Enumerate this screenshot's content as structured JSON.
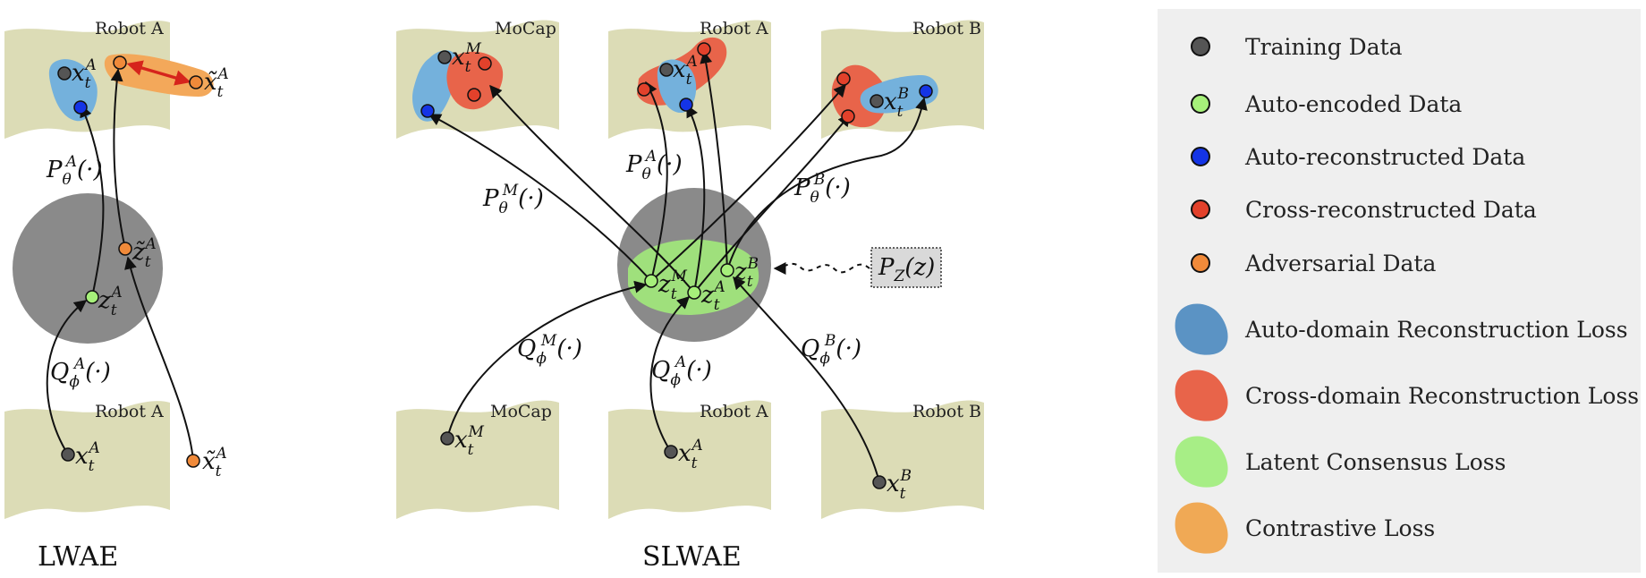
{
  "panels": {
    "lwae": {
      "caption": "LWAE",
      "top_label": "Robot A",
      "bottom_label": "Robot A"
    },
    "slwae": {
      "caption": "SLWAE",
      "top_labels": [
        "MoCap",
        "Robot A",
        "Robot B"
      ],
      "bottom_labels": [
        "MoCap",
        "Robot A",
        "Robot B"
      ]
    }
  },
  "math": {
    "x": "x",
    "t": "t",
    "A": "A",
    "B": "B",
    "M": "M",
    "z": "z",
    "P": "P",
    "Q": "Q",
    "theta": "θ",
    "phi": "ϕ",
    "dot_arg": "(·)",
    "tilde_x": "x̃",
    "tilde_z": "z̃",
    "pz": "P",
    "pz_sub": "Z",
    "pz_arg": "(z)"
  },
  "legend": {
    "items": [
      {
        "type": "dot",
        "label": "Training Data",
        "color": "#555555"
      },
      {
        "type": "dot",
        "label": "Auto-encoded Data",
        "color": "#a6f07a"
      },
      {
        "type": "dot",
        "label": "Auto-reconstructed Data",
        "color": "#1434e6"
      },
      {
        "type": "dot",
        "label": "Cross-reconstructed Data",
        "color": "#e2412b"
      },
      {
        "type": "dot",
        "label": "Adversarial Data",
        "color": "#f08a3a"
      },
      {
        "type": "blob",
        "label": "Auto-domain Reconstruction Loss",
        "color": "#5b93c4"
      },
      {
        "type": "blob",
        "label": "Cross-domain Reconstruction Loss",
        "color": "#e8644a"
      },
      {
        "type": "blob",
        "label": "Latent Consensus Loss",
        "color": "#a7ee86"
      },
      {
        "type": "blob",
        "label": "Contrastive Loss",
        "color": "#f0a955"
      }
    ]
  },
  "colors": {
    "region": "#dcdcb6",
    "latent": "#8a8a8a",
    "blue_loss": "#74b1dc",
    "red_loss": "#e8644a",
    "green_loss": "#9fe07c",
    "orange_loss": "#f3a85a",
    "legend_bg": "#efefef"
  }
}
